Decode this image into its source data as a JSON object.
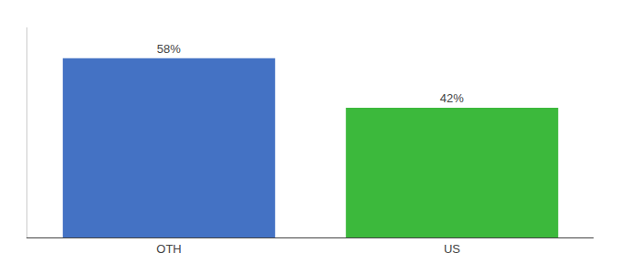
{
  "chart_data": {
    "type": "bar",
    "categories": [
      "OTH",
      "US"
    ],
    "values": [
      58,
      42
    ],
    "value_labels": [
      "58%",
      "42%"
    ],
    "colors": [
      "#4472C4",
      "#3CB93C"
    ],
    "ylim": [
      0,
      68
    ],
    "data_labels": true,
    "tick_labels": "x",
    "grid": false
  }
}
